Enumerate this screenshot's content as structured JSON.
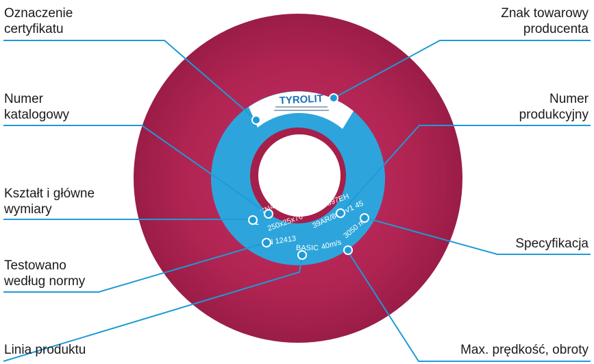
{
  "labels": {
    "oznaczenie": [
      "Oznaczenie",
      "certyfikatu"
    ],
    "znak": [
      "Znak towarowy",
      "producenta"
    ],
    "numer_kat": [
      "Numer",
      "katalogowy"
    ],
    "numer_prod": [
      "Numer",
      "produkcyjny"
    ],
    "ksztalt": [
      "Kształt i główne",
      "wymiary"
    ],
    "specyfikacja": [
      "Specyfikacja"
    ],
    "testowano": [
      "Testowano",
      "według normy"
    ],
    "linia": [
      "Linia produktu"
    ],
    "max": [
      "Max. prędkość, obroty"
    ]
  },
  "disc": {
    "brand": "TYROLIT",
    "lines": [
      "TN421424",
      "FA 84897EH",
      "T1",
      "250x25x76",
      "39AR/80/1V1 45",
      "EN 12413",
      "BASIC",
      "40m/s",
      "3050 min"
    ]
  },
  "colors": {
    "wheel": "#b02452",
    "blue_ring": "#2da5dc",
    "leader": "#1e9ad6",
    "text": "#1a1a1a"
  }
}
